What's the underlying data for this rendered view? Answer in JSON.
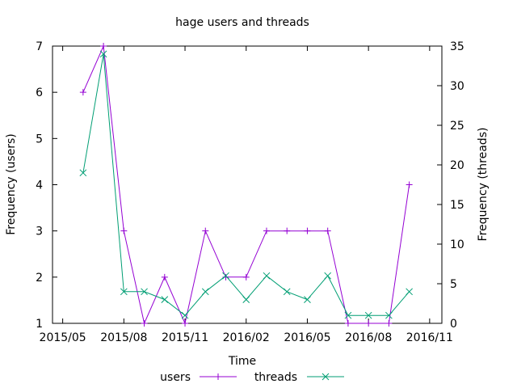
{
  "chart_data": {
    "type": "line",
    "title": "hage users and threads",
    "xlabel": "Time",
    "ylabel_left": "Frequency (users)",
    "ylabel_right": "Frequency (threads)",
    "x_ticks": [
      "2015/05",
      "2015/08",
      "2015/11",
      "2016/02",
      "2016/05",
      "2016/08",
      "2016/11"
    ],
    "y_left_ticks": [
      "1",
      "2",
      "3",
      "4",
      "5",
      "6",
      "7"
    ],
    "y_right_ticks": [
      "0",
      "5",
      "10",
      "15",
      "20",
      "25",
      "30",
      "35"
    ],
    "y_left_range": [
      1,
      7
    ],
    "y_right_range": [
      0,
      35
    ],
    "x": [
      "2015/06",
      "2015/07",
      "2015/08",
      "2015/09",
      "2015/10",
      "2015/11",
      "2015/12",
      "2016/01",
      "2016/02",
      "2016/03",
      "2016/04",
      "2016/05",
      "2016/06",
      "2016/07",
      "2016/08",
      "2016/09",
      "2016/10"
    ],
    "series": [
      {
        "name": "users",
        "axis": "left",
        "marker": "+",
        "color": "#9400d3",
        "values": [
          6,
          7,
          3,
          1,
          2,
          1,
          3,
          2,
          2,
          3,
          3,
          3,
          3,
          1,
          1,
          1,
          4
        ]
      },
      {
        "name": "threads",
        "axis": "right",
        "marker": "x",
        "color": "#009e73",
        "values": [
          19,
          34,
          4,
          4,
          3,
          1,
          4,
          6,
          3,
          6,
          4,
          3,
          6,
          1,
          1,
          1,
          4
        ]
      }
    ],
    "grid": false,
    "legend_position": "bottom"
  }
}
